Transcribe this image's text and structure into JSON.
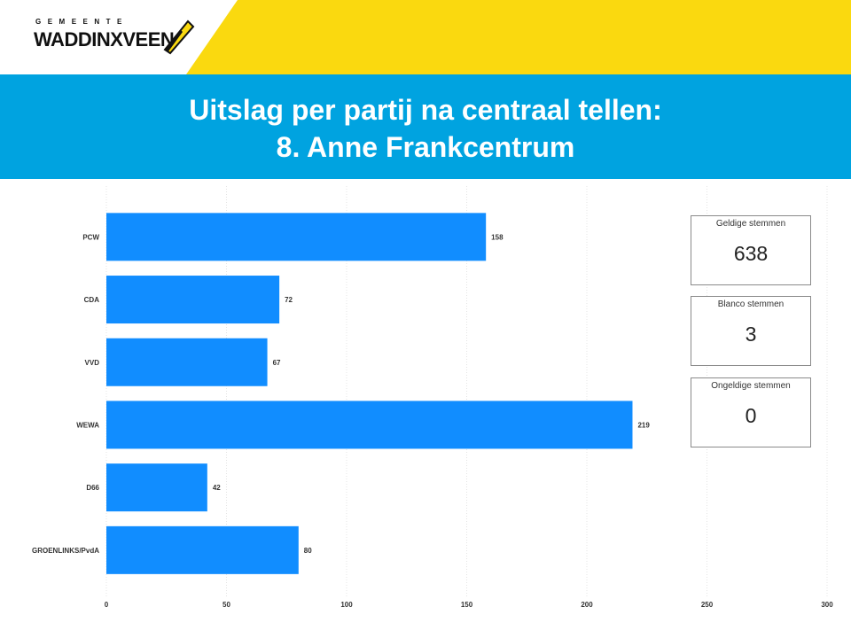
{
  "header": {
    "logo_small_text": "GEMEENTE",
    "logo_main_text": "WADDINXVEEN",
    "colors": {
      "yellow": "#fad90f",
      "blue": "#00a3e0",
      "bar": "#118dff"
    }
  },
  "title": {
    "line1": "Uitslag per partij na centraal tellen:",
    "line2": "8. Anne Frankcentrum"
  },
  "kpis": {
    "valid": {
      "label": "Geldige stemmen",
      "value": "638"
    },
    "blank": {
      "label": "Blanco stemmen",
      "value": "3"
    },
    "invalid": {
      "label": "Ongeldige stemmen",
      "value": "0"
    }
  },
  "chart_data": {
    "type": "bar",
    "orientation": "horizontal",
    "categories": [
      "PCW",
      "CDA",
      "VVD",
      "WEWA",
      "D66",
      "GROENLINKS/PvdA"
    ],
    "values": [
      158,
      72,
      67,
      219,
      42,
      80
    ],
    "data_labels": [
      "158",
      "72",
      "67",
      "219",
      "42",
      "80"
    ],
    "xlim": [
      0,
      300
    ],
    "x_ticks": [
      0,
      50,
      100,
      150,
      200,
      250,
      300
    ],
    "x_tick_labels": [
      "0",
      "50",
      "100",
      "150",
      "200",
      "250",
      "300"
    ],
    "grid": true,
    "xlabel": "",
    "ylabel": "",
    "title": ""
  }
}
